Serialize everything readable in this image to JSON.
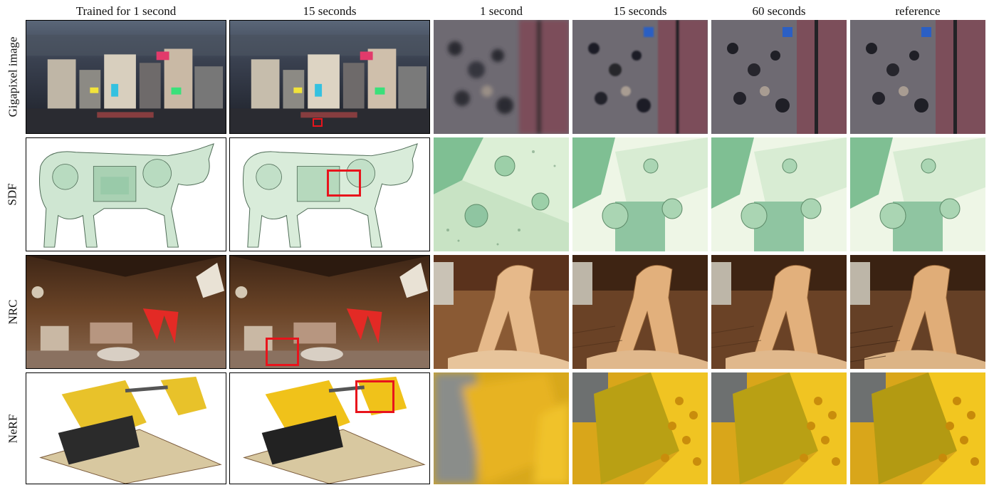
{
  "columns": [
    "Trained for 1 second",
    "15 seconds",
    "1 second",
    "15 seconds",
    "60 seconds",
    "reference"
  ],
  "rows": [
    "Gigapixel image",
    "SDF",
    "NRC",
    "NeRF"
  ],
  "colors": {
    "highlight": "#e8141c",
    "sdf_green": "#8fc5a1",
    "sdf_light": "#e9f4e3",
    "city_dark": "#2e3442",
    "nrc_wood": "#7a4a2a",
    "nerf_yellow": "#f0c21a"
  }
}
